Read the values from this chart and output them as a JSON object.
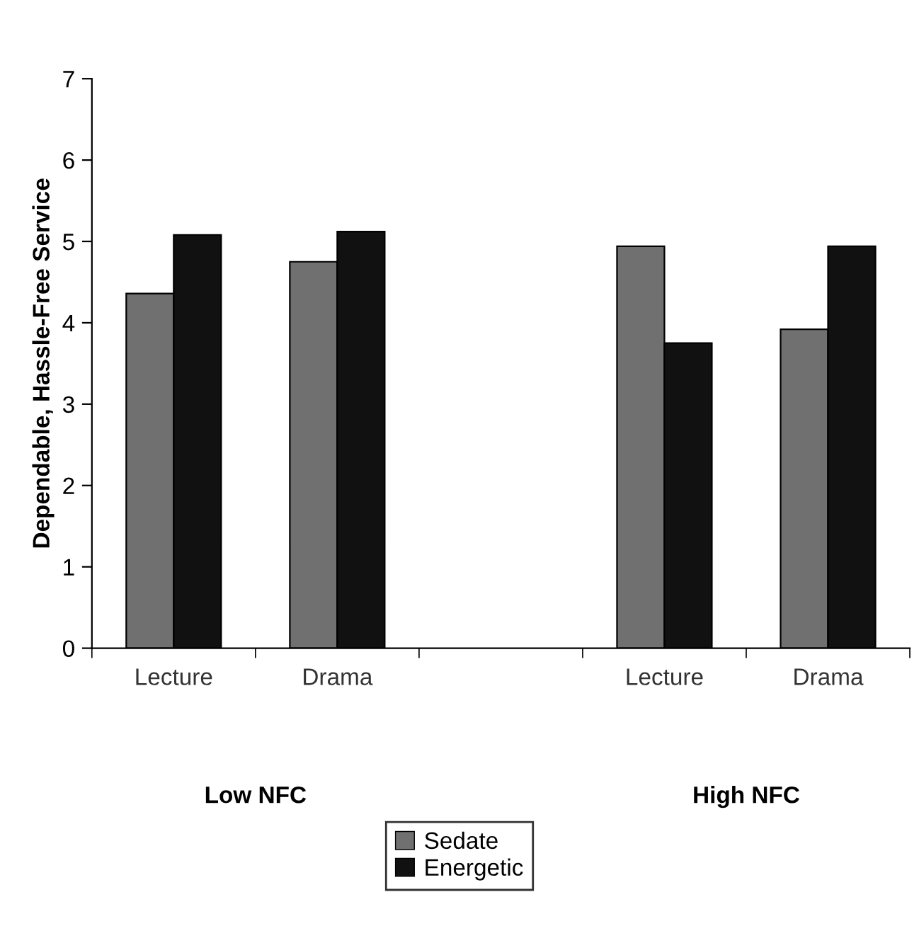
{
  "chart_data": {
    "type": "bar",
    "ylabel": "Dependable, Hassle-Free Service",
    "categories": [
      "Lecture",
      "Drama",
      null,
      "Lecture",
      "Drama"
    ],
    "series": [
      {
        "name": "Sedate",
        "color": "#707070",
        "values": [
          4.36,
          4.75,
          null,
          4.94,
          3.92
        ]
      },
      {
        "name": "Energetic",
        "color": "#111111",
        "values": [
          5.08,
          5.12,
          null,
          3.75,
          4.94
        ]
      }
    ],
    "ylim": [
      0,
      7
    ],
    "yticks": [
      0,
      1,
      2,
      3,
      4,
      5,
      6,
      7
    ],
    "annotations": [
      "Low NFC",
      "High NFC"
    ],
    "legend": "bottom",
    "grid": false
  }
}
